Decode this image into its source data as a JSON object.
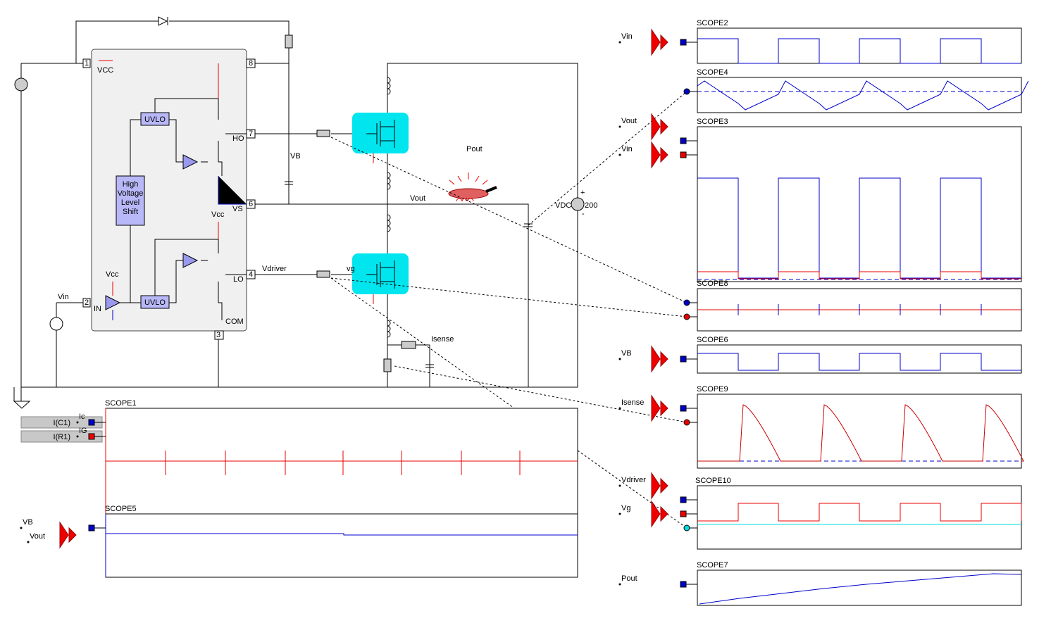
{
  "circuit": {
    "pins": [
      "1",
      "2",
      "3",
      "4",
      "6",
      "7",
      "8"
    ],
    "vcc_in": "VCC",
    "uvlo_high": "UVLO",
    "uvlo_low": "UVLO",
    "level_shift": [
      "High",
      "Voltage",
      "Level",
      "Shift"
    ],
    "in_pin": "IN",
    "vcc_high": "Vcc",
    "vcc_low": "Vcc",
    "ho": "HO",
    "vs": "VS",
    "lo": "LO",
    "com": "COM",
    "vin": "Vin",
    "vb": "VB",
    "vout": "Vout",
    "pout": "Pout",
    "vdriver": "Vdriver",
    "vg": "vg",
    "isense": "Isense",
    "vdc": "VDC",
    "vdc_value": "200",
    "plus": "+",
    "minus": "-"
  },
  "scopes": [
    {
      "title": "SCOPE2",
      "inputs": [
        "Vin"
      ]
    },
    {
      "title": "SCOPE4"
    },
    {
      "title": "SCOPE3",
      "inputs": [
        "Vout",
        "Vin"
      ]
    },
    {
      "title": "SCOPE8"
    },
    {
      "title": "SCOPE6",
      "inputs": [
        "VB"
      ]
    },
    {
      "title": "SCOPE9",
      "inputs": [
        "Isense"
      ]
    },
    {
      "title": "SCOPE10",
      "inputs": [
        "Vdriver",
        "Vg"
      ]
    },
    {
      "title": "SCOPE7",
      "inputs": [
        "Pout"
      ]
    },
    {
      "title": "SCOPE1",
      "inputs": [
        "Ic",
        "IG"
      ]
    },
    {
      "title": "SCOPE5",
      "inputs": [
        "VB",
        "Vout"
      ]
    }
  ],
  "meters": [
    "I(C1)",
    "I(R1)"
  ]
}
